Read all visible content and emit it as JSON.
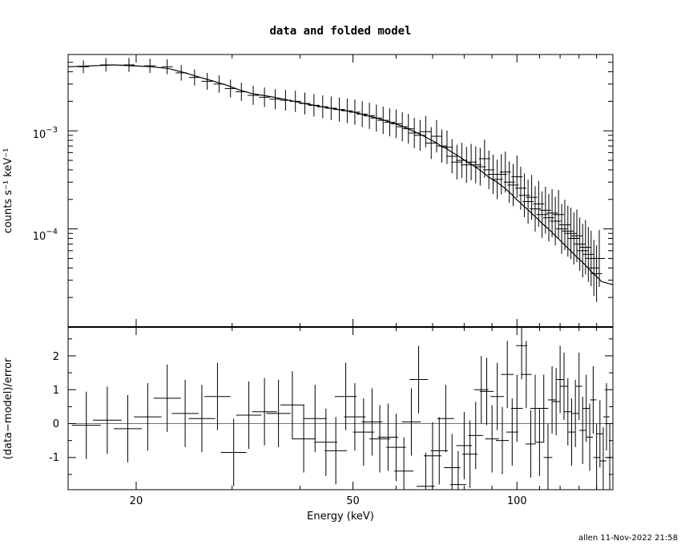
{
  "chart_data": [
    {
      "type": "step",
      "title": "data and folded model",
      "ylabel": "counts s⁻¹ keV⁻¹",
      "xlabel": "",
      "xscale": "log",
      "yscale": "log",
      "xlim": [
        15,
        150
      ],
      "ylim": [
        1e-05,
        0.006
      ],
      "yticks": [
        {
          "value": 0.001,
          "base": "10",
          "exp": "−3"
        },
        {
          "value": 0.0001,
          "base": "10",
          "exp": "−4"
        }
      ],
      "data": [
        [
          16.0,
          0.0045
        ],
        [
          17.6,
          0.0047
        ],
        [
          19.4,
          0.0047
        ],
        [
          21.2,
          0.0046
        ],
        [
          22.8,
          0.0045
        ],
        [
          24.2,
          0.0039
        ],
        [
          25.6,
          0.0035
        ],
        [
          27.0,
          0.0032
        ],
        [
          28.4,
          0.003
        ],
        [
          29.8,
          0.0027
        ],
        [
          31.2,
          0.0025
        ],
        [
          32.8,
          0.0023
        ],
        [
          34.4,
          0.0022
        ],
        [
          36.0,
          0.0021
        ],
        [
          37.6,
          0.00205
        ],
        [
          39.2,
          0.002
        ],
        [
          40.8,
          0.0019
        ],
        [
          42.4,
          0.00182
        ],
        [
          44.0,
          0.00176
        ],
        [
          45.6,
          0.0017
        ],
        [
          47.2,
          0.00165
        ],
        [
          48.8,
          0.0016
        ],
        [
          50.4,
          0.00155
        ],
        [
          52.0,
          0.00148
        ],
        [
          53.6,
          0.00142
        ],
        [
          55.2,
          0.00135
        ],
        [
          56.8,
          0.00128
        ],
        [
          58.4,
          0.00122
        ],
        [
          60.0,
          0.00118
        ],
        [
          61.6,
          0.0011
        ],
        [
          63.2,
          0.00105
        ],
        [
          64.8,
          0.00095
        ],
        [
          66.4,
          0.0009
        ],
        [
          68.0,
          0.00098
        ],
        [
          69.6,
          0.00075
        ],
        [
          71.2,
          0.00088
        ],
        [
          72.8,
          0.0007
        ],
        [
          74.4,
          0.00068
        ],
        [
          76.0,
          0.00055
        ],
        [
          77.6,
          0.00048
        ],
        [
          79.2,
          0.0005
        ],
        [
          80.8,
          0.00045
        ],
        [
          82.4,
          0.00048
        ],
        [
          84.0,
          0.00045
        ],
        [
          85.6,
          0.00043
        ],
        [
          87.2,
          0.00052
        ],
        [
          88.8,
          0.0004
        ],
        [
          90.4,
          0.00036
        ],
        [
          92.0,
          0.00032
        ],
        [
          93.6,
          0.00036
        ],
        [
          95.2,
          0.00038
        ],
        [
          96.8,
          0.0003
        ],
        [
          98.4,
          0.00028
        ],
        [
          100.0,
          0.00034
        ],
        [
          101.6,
          0.00026
        ],
        [
          103.2,
          0.00022
        ],
        [
          104.8,
          0.00019
        ],
        [
          106.4,
          0.00021
        ],
        [
          108.0,
          0.00016
        ],
        [
          109.6,
          0.00018
        ],
        [
          111.2,
          0.00014
        ],
        [
          112.8,
          0.000155
        ],
        [
          114.4,
          0.00013
        ],
        [
          116.0,
          0.000145
        ],
        [
          117.6,
          0.00012
        ],
        [
          119.2,
          0.00014
        ],
        [
          120.8,
          0.0001
        ],
        [
          122.4,
          0.00011
        ],
        [
          124.0,
          9.5e-05
        ],
        [
          125.6,
          9e-05
        ],
        [
          127.2,
          8e-05
        ],
        [
          128.8,
          8.5e-05
        ],
        [
          130.4,
          7e-05
        ],
        [
          132.0,
          6e-05
        ],
        [
          133.6,
          6.5e-05
        ],
        [
          135.2,
          5.5e-05
        ],
        [
          136.8,
          5e-05
        ],
        [
          138.4,
          4e-05
        ],
        [
          140.0,
          3.5e-05
        ],
        [
          141.6,
          5e-05
        ]
      ],
      "model": [
        [
          15.0,
          0.0045
        ],
        [
          16.6,
          0.0046
        ],
        [
          18.2,
          0.0047
        ],
        [
          19.8,
          0.0046
        ],
        [
          21.4,
          0.0045
        ],
        [
          23.0,
          0.0043
        ],
        [
          24.6,
          0.0039
        ],
        [
          26.2,
          0.0035
        ],
        [
          27.8,
          0.0032
        ],
        [
          29.4,
          0.0029
        ],
        [
          31.0,
          0.0026
        ],
        [
          32.6,
          0.0024
        ],
        [
          34.2,
          0.0023
        ],
        [
          35.8,
          0.0022
        ],
        [
          37.4,
          0.0021
        ],
        [
          39.0,
          0.002
        ],
        [
          40.6,
          0.0019
        ],
        [
          42.2,
          0.00183
        ],
        [
          43.8,
          0.00176
        ],
        [
          45.4,
          0.0017
        ],
        [
          47.0,
          0.00165
        ],
        [
          48.6,
          0.0016
        ],
        [
          50.2,
          0.00155
        ],
        [
          51.8,
          0.00148
        ],
        [
          53.4,
          0.00142
        ],
        [
          55.0,
          0.00136
        ],
        [
          56.6,
          0.0013
        ],
        [
          58.2,
          0.00124
        ],
        [
          59.8,
          0.00118
        ],
        [
          61.4,
          0.00112
        ],
        [
          63.0,
          0.00105
        ],
        [
          64.6,
          0.00099
        ],
        [
          66.2,
          0.00093
        ],
        [
          67.8,
          0.00087
        ],
        [
          69.4,
          0.00081
        ],
        [
          71.0,
          0.00076
        ],
        [
          72.6,
          0.0007
        ],
        [
          74.2,
          0.00066
        ],
        [
          75.8,
          0.00061
        ],
        [
          77.4,
          0.00057
        ],
        [
          79.0,
          0.00053
        ],
        [
          80.6,
          0.00049
        ],
        [
          82.2,
          0.00046
        ],
        [
          83.8,
          0.00043
        ],
        [
          85.4,
          0.0004
        ],
        [
          87.0,
          0.00037
        ],
        [
          88.6,
          0.00034
        ],
        [
          90.2,
          0.00032
        ],
        [
          91.8,
          0.0003
        ],
        [
          93.4,
          0.00028
        ],
        [
          95.0,
          0.00026
        ],
        [
          96.6,
          0.00024
        ],
        [
          98.2,
          0.00022
        ],
        [
          99.8,
          0.0002
        ],
        [
          101.4,
          0.000185
        ],
        [
          103.0,
          0.00017
        ],
        [
          104.6,
          0.000158
        ],
        [
          106.2,
          0.000146
        ],
        [
          107.8,
          0.000135
        ],
        [
          109.4,
          0.000125
        ],
        [
          111.0,
          0.000115
        ],
        [
          112.6,
          0.000107
        ],
        [
          114.2,
          0.0001
        ],
        [
          115.8,
          9.3e-05
        ],
        [
          117.4,
          8.6e-05
        ],
        [
          119.0,
          8e-05
        ],
        [
          120.6,
          7.4e-05
        ],
        [
          122.2,
          6.9e-05
        ],
        [
          123.8,
          6.4e-05
        ],
        [
          125.4,
          6e-05
        ],
        [
          127.0,
          5.6e-05
        ],
        [
          128.6,
          5.2e-05
        ],
        [
          130.2,
          4.9e-05
        ],
        [
          131.8,
          4.6e-05
        ],
        [
          133.4,
          4.3e-05
        ],
        [
          135.0,
          4e-05
        ],
        [
          136.6,
          3.7e-05
        ],
        [
          138.2,
          3.5e-05
        ],
        [
          139.8,
          3.3e-05
        ],
        [
          141.4,
          3.1e-05
        ],
        [
          143.0,
          2.9e-05
        ],
        [
          150.0,
          2.7e-05
        ]
      ]
    },
    {
      "type": "residual",
      "title": "",
      "ylabel": "(data−model)/error",
      "xlabel": "Energy (keV)",
      "xscale": "log",
      "xlim": [
        15,
        150
      ],
      "ylim": [
        -1.95,
        2.85
      ],
      "yticks": [
        2,
        1,
        0,
        -1
      ],
      "xticks": [
        20,
        50,
        100
      ],
      "zero_line_color": "#00c000",
      "data": [
        [
          16.2,
          -0.05
        ],
        [
          17.7,
          0.1
        ],
        [
          19.3,
          -0.15
        ],
        [
          21.0,
          0.2
        ],
        [
          22.8,
          0.75
        ],
        [
          24.6,
          0.3
        ],
        [
          26.4,
          0.15
        ],
        [
          28.2,
          0.8
        ],
        [
          30.2,
          -0.85
        ],
        [
          32.2,
          0.25
        ],
        [
          34.4,
          0.35
        ],
        [
          36.5,
          0.3
        ],
        [
          38.7,
          0.55
        ],
        [
          40.6,
          -0.45
        ],
        [
          42.6,
          0.15
        ],
        [
          44.6,
          -0.55
        ],
        [
          46.5,
          -0.8
        ],
        [
          48.5,
          0.8
        ],
        [
          50.4,
          0.2
        ],
        [
          52.3,
          -0.25
        ],
        [
          54.2,
          0.05
        ],
        [
          56.0,
          -0.45
        ],
        [
          58.0,
          -0.4
        ],
        [
          60.0,
          -0.7
        ],
        [
          62.0,
          -1.4
        ],
        [
          64.0,
          0.05
        ],
        [
          66.0,
          1.3
        ],
        [
          68.0,
          -1.85
        ],
        [
          70.0,
          -0.95
        ],
        [
          72.0,
          -0.8
        ],
        [
          74.0,
          0.15
        ],
        [
          76.0,
          -1.3
        ],
        [
          78.0,
          -1.8
        ],
        [
          80.0,
          -0.65
        ],
        [
          82.0,
          -0.9
        ],
        [
          84.0,
          -0.35
        ],
        [
          86.0,
          1.0
        ],
        [
          88.0,
          0.95
        ],
        [
          90.0,
          -0.45
        ],
        [
          92.0,
          0.8
        ],
        [
          94.0,
          -0.5
        ],
        [
          96.0,
          1.45
        ],
        [
          98.0,
          -0.25
        ],
        [
          100.0,
          0.45
        ],
        [
          102.0,
          2.3
        ],
        [
          104.0,
          1.45
        ],
        [
          106.0,
          -0.6
        ],
        [
          108.0,
          0.45
        ],
        [
          110.0,
          -0.55
        ],
        [
          112.0,
          0.45
        ],
        [
          114.0,
          -1.0
        ],
        [
          116.0,
          0.7
        ],
        [
          118.0,
          0.65
        ],
        [
          120.0,
          1.3
        ],
        [
          122.0,
          1.1
        ],
        [
          124.0,
          0.35
        ],
        [
          126.0,
          -0.25
        ],
        [
          128.0,
          0.3
        ],
        [
          130.0,
          1.1
        ],
        [
          132.0,
          -0.2
        ],
        [
          134.0,
          0.45
        ],
        [
          136.0,
          -0.4
        ],
        [
          138.0,
          0.7
        ],
        [
          140.0,
          -1.0
        ],
        [
          142.0,
          -0.3
        ],
        [
          144.0,
          -1.1
        ],
        [
          146.0,
          0.2
        ],
        [
          148.0,
          -1.0
        ]
      ]
    }
  ],
  "footer": "allen 11-Nov-2022 21:58"
}
